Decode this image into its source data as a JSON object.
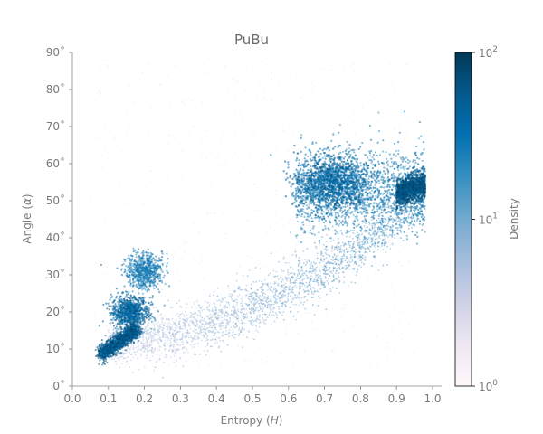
{
  "chart_data": {
    "type": "heatmap",
    "title": "PuBu",
    "xlabel": "Entropy (H)",
    "ylabel": "Angle (α)",
    "xlim": [
      0.0,
      1.05
    ],
    "ylim": [
      0,
      90
    ],
    "x_ticks": [
      0.0,
      0.1,
      0.2,
      0.3,
      0.4,
      0.5,
      0.6,
      0.7,
      0.8,
      0.9,
      1.0
    ],
    "x_tick_labels": [
      "0.0",
      "0.1",
      "0.2",
      "0.3",
      "0.4",
      "0.5",
      "0.6",
      "0.7",
      "0.8",
      "0.9",
      "1.0"
    ],
    "y_ticks": [
      0,
      10,
      20,
      30,
      40,
      50,
      60,
      70,
      80,
      90
    ],
    "y_tick_labels": [
      "0˚",
      "10˚",
      "20˚",
      "30˚",
      "40˚",
      "50˚",
      "60˚",
      "70˚",
      "80˚",
      "90˚"
    ],
    "grid": false,
    "colormap": "PuBu",
    "colorbar": {
      "label": "Density",
      "scale": "log",
      "range": [
        1,
        100
      ],
      "ticks": [
        1,
        10,
        100
      ],
      "tick_labels": [
        "10^0",
        "10^1",
        "10^2"
      ],
      "colors": [
        "#fff7fb",
        "#ece7f2",
        "#d0d1e6",
        "#a6bddb",
        "#74a9cf",
        "#3690c0",
        "#0570b0",
        "#045a8d",
        "#023858"
      ]
    },
    "density_clusters": [
      {
        "x": 0.95,
        "y": 52,
        "density": 100
      },
      {
        "x": 0.8,
        "y": 53,
        "density": 60
      },
      {
        "x": 0.12,
        "y": 12,
        "density": 80
      },
      {
        "x": 0.18,
        "y": 20,
        "density": 50
      },
      {
        "x": 0.22,
        "y": 31,
        "density": 30
      }
    ]
  }
}
